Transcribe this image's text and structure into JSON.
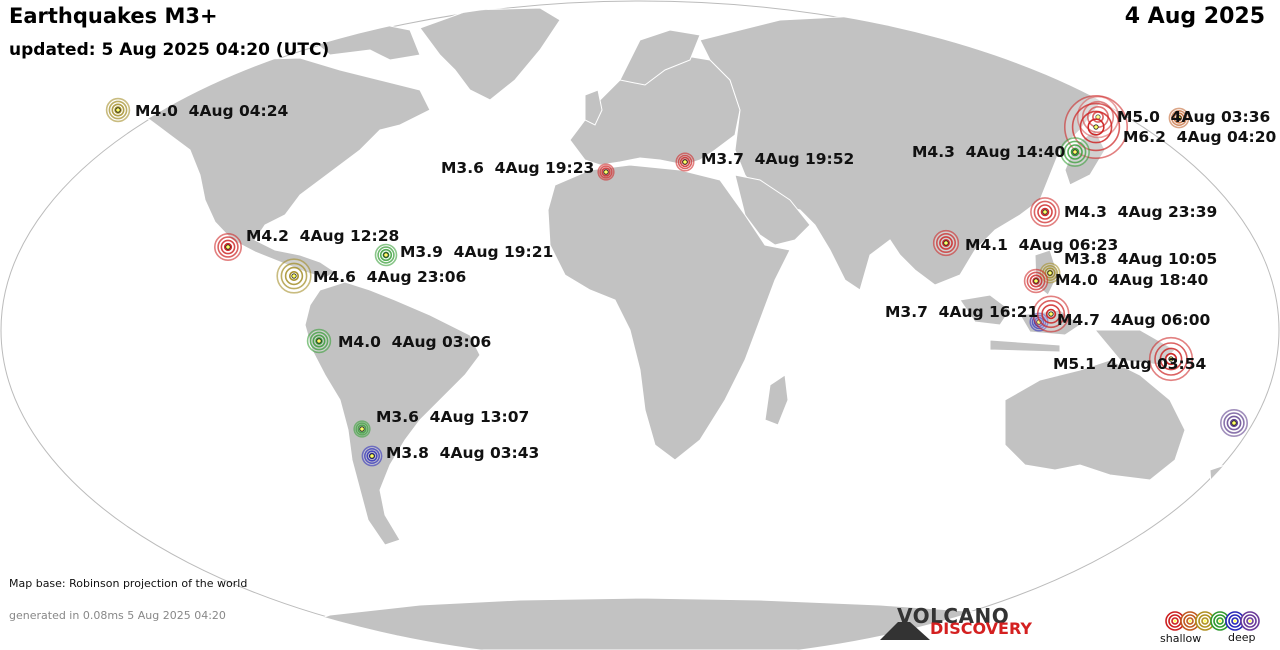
{
  "header": {
    "title": "Earthquakes M3+",
    "updated": "updated:  5 Aug 2025 04:20 (UTC)",
    "date": "4 Aug 2025"
  },
  "footer": {
    "map_base": "Map base: Robinson projection of the world",
    "generated": "generated in 0.08ms  5 Aug 2025 04:20"
  },
  "brand": {
    "line1": "VOLCANO",
    "line2": "DISCOVERY"
  },
  "legend": {
    "shallow": "shallow",
    "deep": "deep",
    "colors": [
      "#cc2020",
      "#c05a20",
      "#b09020",
      "#2f9a2f",
      "#2828b8",
      "#6a3a9a"
    ]
  },
  "colors": {
    "land": "#c2c2c2",
    "ocean": "#ffffff",
    "border": "#ffffff",
    "red": "#cc2020",
    "orange": "#c0602a",
    "olive": "#a08a20",
    "green": "#2f9a2f",
    "blue": "#2828b8",
    "purple": "#5a3a8a"
  },
  "quakes": [
    {
      "label": "M4.0  4Aug 04:24",
      "mag": 4.0,
      "depth_class": "olive"
    },
    {
      "label": "M3.6  4Aug 19:23",
      "mag": 3.6,
      "depth_class": "red"
    },
    {
      "label": "M3.7  4Aug 19:52",
      "mag": 3.7,
      "depth_class": "red"
    },
    {
      "label": "M4.2  4Aug 12:28",
      "mag": 4.2,
      "depth_class": "red"
    },
    {
      "label": "M3.9  4Aug 19:21",
      "mag": 3.9,
      "depth_class": "green"
    },
    {
      "label": "M4.6  4Aug 23:06",
      "mag": 4.6,
      "depth_class": "olive"
    },
    {
      "label": "M4.0  4Aug 03:06",
      "mag": 4.0,
      "depth_class": "green"
    },
    {
      "label": "M3.6  4Aug 13:07",
      "mag": 3.6,
      "depth_class": "green"
    },
    {
      "label": "M3.8  4Aug 03:43",
      "mag": 3.8,
      "depth_class": "blue"
    },
    {
      "label": "M5.0  4Aug 03:36",
      "mag": 5.0,
      "depth_class": "red"
    },
    {
      "label": "M6.2  4Aug 04:20",
      "mag": 6.2,
      "depth_class": "red"
    },
    {
      "label": "M4.3  4Aug 14:40",
      "mag": 4.3,
      "depth_class": "green"
    },
    {
      "label": "M4.3  4Aug 23:39",
      "mag": 4.3,
      "depth_class": "red"
    },
    {
      "label": "M4.1  4Aug 06:23",
      "mag": 4.1,
      "depth_class": "red"
    },
    {
      "label": "M3.8  4Aug 10:05",
      "mag": 3.8,
      "depth_class": "olive"
    },
    {
      "label": "M4.0  4Aug 18:40",
      "mag": 4.0,
      "depth_class": "red"
    },
    {
      "label": "M3.7  4Aug 16:21",
      "mag": 3.7,
      "depth_class": "blue"
    },
    {
      "label": "M4.7  4Aug 06:00",
      "mag": 4.7,
      "depth_class": "red"
    },
    {
      "label": "M5.1  4Aug 03:54",
      "mag": 5.1,
      "depth_class": "red"
    },
    {
      "label": "",
      "mag": 4.2,
      "depth_class": "purple"
    },
    {
      "label": "",
      "mag": 3.8,
      "depth_class": "orange"
    }
  ]
}
